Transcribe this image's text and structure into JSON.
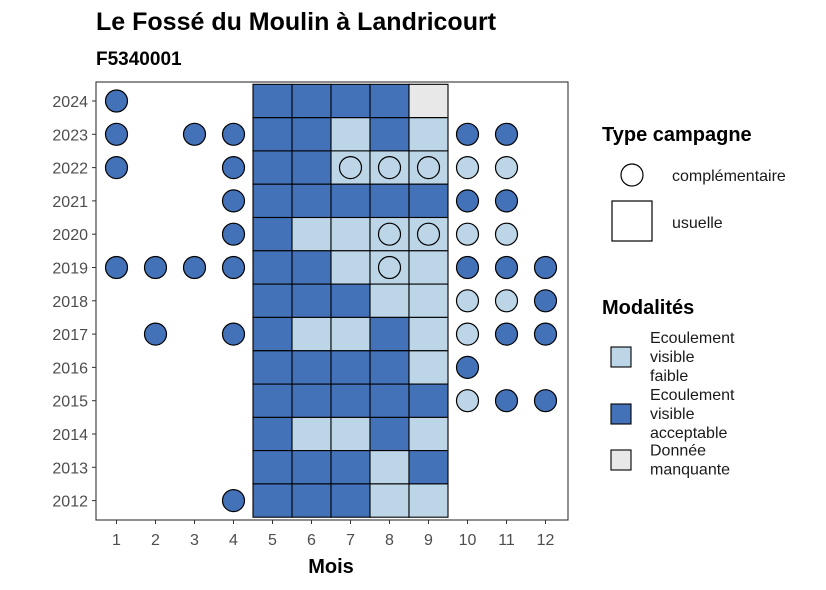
{
  "chart_data": {
    "type": "heatmap",
    "title": "Le Fossé du Moulin à Landricourt",
    "subtitle": "F5340001",
    "xlabel": "Mois",
    "ylabel": "",
    "x_ticks": [
      1,
      2,
      3,
      4,
      5,
      6,
      7,
      8,
      9,
      10,
      11,
      12
    ],
    "y_ticks": [
      2012,
      2013,
      2014,
      2015,
      2016,
      2017,
      2018,
      2019,
      2020,
      2021,
      2022,
      2023,
      2024
    ],
    "colors": {
      "Ecoulement visible faible": "#bcd6e8",
      "Ecoulement visible acceptable": "#4472b8",
      "Donnée manquante": "#e8e8e8"
    },
    "legend_type": {
      "title": "Type campagne",
      "items": [
        {
          "label": "complémentaire",
          "shape": "circle"
        },
        {
          "label": "usuelle",
          "shape": "square"
        }
      ]
    },
    "legend_modalites": {
      "title": "Modalités",
      "items": [
        {
          "key": "Ecoulement visible faible",
          "lines": [
            "Ecoulement",
            "visible",
            "faible"
          ]
        },
        {
          "key": "Ecoulement visible acceptable",
          "lines": [
            "Ecoulement",
            "visible",
            "acceptable"
          ]
        },
        {
          "key": "Donnée manquante",
          "lines": [
            "Donnée",
            "manquante"
          ]
        }
      ]
    },
    "usuelle": [
      {
        "year": 2024,
        "months": [
          5,
          6,
          7,
          8,
          9
        ],
        "values": [
          "Ecoulement visible acceptable",
          "Ecoulement visible acceptable",
          "Ecoulement visible acceptable",
          "Ecoulement visible acceptable",
          "Donnée manquante"
        ]
      },
      {
        "year": 2023,
        "months": [
          5,
          6,
          7,
          8,
          9
        ],
        "values": [
          "Ecoulement visible acceptable",
          "Ecoulement visible acceptable",
          "Ecoulement visible faible",
          "Ecoulement visible acceptable",
          "Ecoulement visible faible"
        ]
      },
      {
        "year": 2022,
        "months": [
          5,
          6,
          7,
          8,
          9
        ],
        "values": [
          "Ecoulement visible acceptable",
          "Ecoulement visible acceptable",
          "Ecoulement visible faible",
          "Ecoulement visible faible",
          "Ecoulement visible faible"
        ]
      },
      {
        "year": 2021,
        "months": [
          5,
          6,
          7,
          8,
          9
        ],
        "values": [
          "Ecoulement visible acceptable",
          "Ecoulement visible acceptable",
          "Ecoulement visible acceptable",
          "Ecoulement visible acceptable",
          "Ecoulement visible acceptable"
        ]
      },
      {
        "year": 2020,
        "months": [
          5,
          6,
          7,
          8,
          9
        ],
        "values": [
          "Ecoulement visible acceptable",
          "Ecoulement visible faible",
          "Ecoulement visible faible",
          "Ecoulement visible faible",
          "Ecoulement visible faible"
        ]
      },
      {
        "year": 2019,
        "months": [
          5,
          6,
          7,
          8,
          9
        ],
        "values": [
          "Ecoulement visible acceptable",
          "Ecoulement visible acceptable",
          "Ecoulement visible faible",
          "Ecoulement visible faible",
          "Ecoulement visible faible"
        ]
      },
      {
        "year": 2018,
        "months": [
          5,
          6,
          7,
          8,
          9
        ],
        "values": [
          "Ecoulement visible acceptable",
          "Ecoulement visible acceptable",
          "Ecoulement visible acceptable",
          "Ecoulement visible faible",
          "Ecoulement visible faible"
        ]
      },
      {
        "year": 2017,
        "months": [
          5,
          6,
          7,
          8,
          9
        ],
        "values": [
          "Ecoulement visible acceptable",
          "Ecoulement visible faible",
          "Ecoulement visible faible",
          "Ecoulement visible acceptable",
          "Ecoulement visible faible"
        ]
      },
      {
        "year": 2016,
        "months": [
          5,
          6,
          7,
          8,
          9
        ],
        "values": [
          "Ecoulement visible acceptable",
          "Ecoulement visible acceptable",
          "Ecoulement visible acceptable",
          "Ecoulement visible acceptable",
          "Ecoulement visible faible"
        ]
      },
      {
        "year": 2015,
        "months": [
          5,
          6,
          7,
          8,
          9
        ],
        "values": [
          "Ecoulement visible acceptable",
          "Ecoulement visible acceptable",
          "Ecoulement visible acceptable",
          "Ecoulement visible acceptable",
          "Ecoulement visible acceptable"
        ]
      },
      {
        "year": 2014,
        "months": [
          5,
          6,
          7,
          8,
          9
        ],
        "values": [
          "Ecoulement visible acceptable",
          "Ecoulement visible faible",
          "Ecoulement visible faible",
          "Ecoulement visible acceptable",
          "Ecoulement visible faible"
        ]
      },
      {
        "year": 2013,
        "months": [
          5,
          6,
          7,
          8,
          9
        ],
        "values": [
          "Ecoulement visible acceptable",
          "Ecoulement visible acceptable",
          "Ecoulement visible acceptable",
          "Ecoulement visible faible",
          "Ecoulement visible acceptable"
        ]
      },
      {
        "year": 2012,
        "months": [
          5,
          6,
          7,
          8,
          9
        ],
        "values": [
          "Ecoulement visible acceptable",
          "Ecoulement visible acceptable",
          "Ecoulement visible acceptable",
          "Ecoulement visible faible",
          "Ecoulement visible faible"
        ]
      }
    ],
    "complementaire": [
      {
        "year": 2024,
        "month": 1,
        "value": "Ecoulement visible acceptable"
      },
      {
        "year": 2023,
        "month": 1,
        "value": "Ecoulement visible acceptable"
      },
      {
        "year": 2023,
        "month": 3,
        "value": "Ecoulement visible acceptable"
      },
      {
        "year": 2023,
        "month": 4,
        "value": "Ecoulement visible acceptable"
      },
      {
        "year": 2023,
        "month": 10,
        "value": "Ecoulement visible acceptable"
      },
      {
        "year": 2023,
        "month": 11,
        "value": "Ecoulement visible acceptable"
      },
      {
        "year": 2022,
        "month": 1,
        "value": "Ecoulement visible acceptable"
      },
      {
        "year": 2022,
        "month": 4,
        "value": "Ecoulement visible acceptable"
      },
      {
        "year": 2022,
        "month": 7,
        "value": "Ecoulement visible faible"
      },
      {
        "year": 2022,
        "month": 8,
        "value": "Ecoulement visible faible"
      },
      {
        "year": 2022,
        "month": 9,
        "value": "Ecoulement visible faible"
      },
      {
        "year": 2022,
        "month": 10,
        "value": "Ecoulement visible faible"
      },
      {
        "year": 2022,
        "month": 11,
        "value": "Ecoulement visible faible"
      },
      {
        "year": 2021,
        "month": 4,
        "value": "Ecoulement visible acceptable"
      },
      {
        "year": 2021,
        "month": 10,
        "value": "Ecoulement visible acceptable"
      },
      {
        "year": 2021,
        "month": 11,
        "value": "Ecoulement visible acceptable"
      },
      {
        "year": 2020,
        "month": 4,
        "value": "Ecoulement visible acceptable"
      },
      {
        "year": 2020,
        "month": 8,
        "value": "Ecoulement visible faible"
      },
      {
        "year": 2020,
        "month": 9,
        "value": "Ecoulement visible faible"
      },
      {
        "year": 2020,
        "month": 10,
        "value": "Ecoulement visible faible"
      },
      {
        "year": 2020,
        "month": 11,
        "value": "Ecoulement visible faible"
      },
      {
        "year": 2019,
        "month": 1,
        "value": "Ecoulement visible acceptable"
      },
      {
        "year": 2019,
        "month": 2,
        "value": "Ecoulement visible acceptable"
      },
      {
        "year": 2019,
        "month": 3,
        "value": "Ecoulement visible acceptable"
      },
      {
        "year": 2019,
        "month": 4,
        "value": "Ecoulement visible acceptable"
      },
      {
        "year": 2019,
        "month": 8,
        "value": "Ecoulement visible faible"
      },
      {
        "year": 2019,
        "month": 10,
        "value": "Ecoulement visible acceptable"
      },
      {
        "year": 2019,
        "month": 11,
        "value": "Ecoulement visible acceptable"
      },
      {
        "year": 2019,
        "month": 12,
        "value": "Ecoulement visible acceptable"
      },
      {
        "year": 2018,
        "month": 10,
        "value": "Ecoulement visible faible"
      },
      {
        "year": 2018,
        "month": 11,
        "value": "Ecoulement visible faible"
      },
      {
        "year": 2018,
        "month": 12,
        "value": "Ecoulement visible acceptable"
      },
      {
        "year": 2017,
        "month": 2,
        "value": "Ecoulement visible acceptable"
      },
      {
        "year": 2017,
        "month": 4,
        "value": "Ecoulement visible acceptable"
      },
      {
        "year": 2017,
        "month": 10,
        "value": "Ecoulement visible faible"
      },
      {
        "year": 2017,
        "month": 11,
        "value": "Ecoulement visible acceptable"
      },
      {
        "year": 2017,
        "month": 12,
        "value": "Ecoulement visible acceptable"
      },
      {
        "year": 2016,
        "month": 10,
        "value": "Ecoulement visible acceptable"
      },
      {
        "year": 2015,
        "month": 10,
        "value": "Ecoulement visible faible"
      },
      {
        "year": 2015,
        "month": 11,
        "value": "Ecoulement visible acceptable"
      },
      {
        "year": 2015,
        "month": 12,
        "value": "Ecoulement visible acceptable"
      },
      {
        "year": 2012,
        "month": 4,
        "value": "Ecoulement visible acceptable"
      }
    ]
  }
}
